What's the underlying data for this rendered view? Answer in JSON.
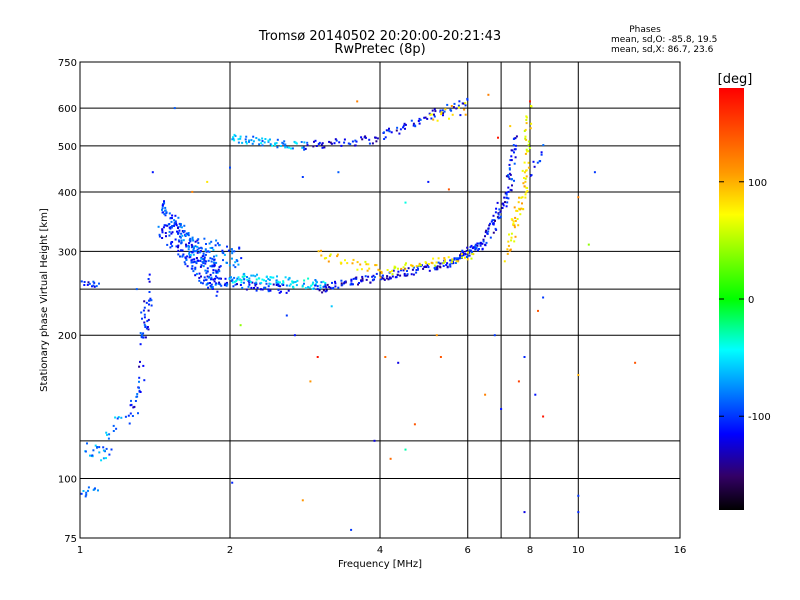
{
  "chart_data": {
    "type": "scatter",
    "title": "Tromsø 20140502 20:20:00-20:21:43",
    "subtitle": "RwPretec (8p)",
    "xlabel": "Frequency [MHz]",
    "ylabel": "Stationary phase Virtual Height [km]",
    "x_scale": "log",
    "y_scale": "log",
    "xlim": [
      1,
      16
    ],
    "ylim": [
      75,
      750
    ],
    "x_ticks": [
      1,
      2,
      4,
      6,
      8,
      10,
      16
    ],
    "y_ticks": [
      75,
      100,
      200,
      300,
      400,
      500,
      600,
      750
    ],
    "grid_x": [
      2,
      4,
      6,
      7,
      8,
      10
    ],
    "grid_y": [
      100,
      120,
      200,
      250,
      300,
      400,
      500,
      600
    ],
    "phases_box": {
      "heading": "Phases",
      "line1": "mean, sd,O: -85.8, 19.5",
      "line2": "mean, sd,X: 86.7, 23.6"
    },
    "colorbar": {
      "unit": "[deg]",
      "range": [
        -180,
        180
      ],
      "tick_values": [
        100,
        0,
        -100
      ],
      "tick_labels": [
        "100",
        "0",
        "-100"
      ]
    },
    "traces": [
      {
        "f0": 1.0,
        "f1": 1.09,
        "h0": 258,
        "h1": 255,
        "n": 14,
        "phase": -110,
        "jit": 0.015
      },
      {
        "f0": 1.0,
        "f1": 1.08,
        "h0": 93,
        "h1": 95,
        "n": 12,
        "phase": -85,
        "jit": 0.02
      },
      {
        "f0": 1.03,
        "f1": 1.15,
        "h0": 115,
        "h1": 112,
        "n": 22,
        "phase": -75,
        "jit": 0.035
      },
      {
        "f0": 1.12,
        "f1": 1.22,
        "h0": 120,
        "h1": 135,
        "n": 12,
        "phase": -80,
        "jit": 0.04
      },
      {
        "f0": 1.26,
        "f1": 1.34,
        "h0": 135,
        "h1": 160,
        "n": 22,
        "phase": -105,
        "jit": 0.05
      },
      {
        "f0": 1.32,
        "f1": 1.38,
        "h0": 185,
        "h1": 255,
        "n": 40,
        "phase": -110,
        "jit": 0.08
      },
      {
        "f0": 1.45,
        "f1": 1.9,
        "h0": 355,
        "h1": 260,
        "n": 240,
        "phase": -100,
        "jit": 0.09
      },
      {
        "f0": 1.6,
        "f1": 2.1,
        "h0": 310,
        "h1": 290,
        "n": 70,
        "phase": -85,
        "jit": 0.06
      },
      {
        "f0": 1.8,
        "f1": 2.6,
        "h0": 262,
        "h1": 250,
        "n": 70,
        "phase": -105,
        "jit": 0.025
      },
      {
        "f0": 2.0,
        "f1": 3.1,
        "h0": 265,
        "h1": 255,
        "n": 90,
        "phase": -60,
        "jit": 0.025
      },
      {
        "f0": 3.0,
        "f1": 5.5,
        "h0": 250,
        "h1": 283,
        "n": 130,
        "phase": -115,
        "jit": 0.02
      },
      {
        "f0": 5.5,
        "f1": 6.3,
        "h0": 283,
        "h1": 308,
        "n": 55,
        "phase": -110,
        "jit": 0.02
      },
      {
        "f0": 3.0,
        "f1": 4.0,
        "h0": 295,
        "h1": 272,
        "n": 30,
        "phase": 85,
        "jit": 0.03
      },
      {
        "f0": 4.0,
        "f1": 6.2,
        "h0": 272,
        "h1": 295,
        "n": 50,
        "phase": 80,
        "jit": 0.02
      },
      {
        "f0": 6.3,
        "f1": 7.2,
        "h0": 300,
        "h1": 390,
        "n": 60,
        "phase": -115,
        "jit": 0.035
      },
      {
        "f0": 7.2,
        "f1": 7.5,
        "h0": 390,
        "h1": 520,
        "n": 35,
        "phase": -110,
        "jit": 0.04
      },
      {
        "f0": 7.2,
        "f1": 7.9,
        "h0": 300,
        "h1": 420,
        "n": 50,
        "phase": 85,
        "jit": 0.05
      },
      {
        "f0": 7.8,
        "f1": 8.0,
        "h0": 420,
        "h1": 600,
        "n": 30,
        "phase": 75,
        "jit": 0.04
      },
      {
        "f0": 2.0,
        "f1": 2.8,
        "h0": 520,
        "h1": 500,
        "n": 60,
        "phase": -70,
        "jit": 0.02
      },
      {
        "f0": 2.8,
        "f1": 3.9,
        "h0": 500,
        "h1": 515,
        "n": 40,
        "phase": -115,
        "jit": 0.02
      },
      {
        "f0": 3.9,
        "f1": 6.0,
        "h0": 515,
        "h1": 625,
        "n": 60,
        "phase": -115,
        "jit": 0.02
      },
      {
        "f0": 5.0,
        "f1": 6.0,
        "h0": 560,
        "h1": 600,
        "n": 14,
        "phase": 90,
        "jit": 0.04
      },
      {
        "f0": 8.1,
        "f1": 8.4,
        "h0": 440,
        "h1": 490,
        "n": 10,
        "phase": -110,
        "jit": 0.03
      }
    ],
    "scattered_points": [
      [
        1.02,
        255,
        -110
      ],
      [
        1.55,
        600,
        -90
      ],
      [
        1.68,
        400,
        120
      ],
      [
        1.8,
        420,
        80
      ],
      [
        2.0,
        450,
        -95
      ],
      [
        2.02,
        98,
        -105
      ],
      [
        2.1,
        210,
        40
      ],
      [
        3.0,
        250,
        -110
      ],
      [
        2.8,
        430,
        -100
      ],
      [
        3.3,
        440,
        -90
      ],
      [
        2.6,
        220,
        -100
      ],
      [
        2.8,
        90,
        110
      ],
      [
        2.9,
        160,
        110
      ],
      [
        3.0,
        180,
        170
      ],
      [
        3.5,
        78,
        -100
      ],
      [
        3.9,
        120,
        -120
      ],
      [
        4.1,
        180,
        130
      ],
      [
        4.2,
        110,
        130
      ],
      [
        4.35,
        175,
        -120
      ],
      [
        4.5,
        380,
        -40
      ],
      [
        4.5,
        115,
        -30
      ],
      [
        4.7,
        130,
        140
      ],
      [
        5.0,
        420,
        -110
      ],
      [
        5.2,
        200,
        110
      ],
      [
        5.3,
        180,
        140
      ],
      [
        5.5,
        405,
        140
      ],
      [
        6.5,
        150,
        120
      ],
      [
        7.0,
        140,
        -110
      ],
      [
        7.5,
        500,
        -110
      ],
      [
        7.6,
        160,
        150
      ],
      [
        7.8,
        180,
        -105
      ],
      [
        7.8,
        85,
        -120
      ],
      [
        8.2,
        150,
        -110
      ],
      [
        8.3,
        225,
        140
      ],
      [
        8.5,
        135,
        170
      ],
      [
        8.5,
        240,
        -100
      ],
      [
        10.0,
        390,
        120
      ],
      [
        10.0,
        92,
        -100
      ],
      [
        10.0,
        85,
        -105
      ],
      [
        10.0,
        165,
        100
      ],
      [
        10.8,
        440,
        -100
      ],
      [
        10.5,
        310,
        40
      ],
      [
        13.0,
        175,
        140
      ],
      [
        6.8,
        200,
        -100
      ],
      [
        7.3,
        550,
        90
      ],
      [
        6.6,
        640,
        120
      ],
      [
        6.9,
        520,
        170
      ],
      [
        5.8,
        580,
        -110
      ],
      [
        3.6,
        620,
        120
      ],
      [
        8.0,
        620,
        170
      ],
      [
        3.2,
        230,
        -60
      ],
      [
        2.7,
        200,
        -110
      ],
      [
        1.4,
        440,
        -110
      ],
      [
        1.3,
        250,
        -90
      ]
    ]
  }
}
